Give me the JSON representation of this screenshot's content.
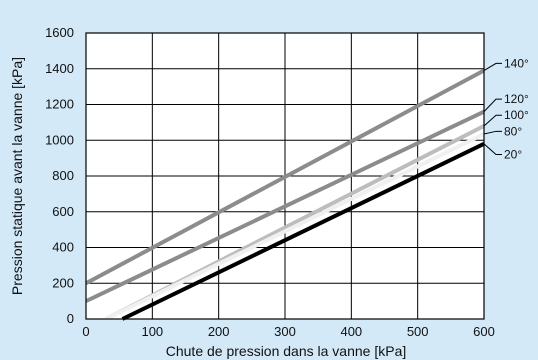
{
  "chart_data": {
    "type": "line",
    "title": "",
    "xlabel": "Chute de pression dans la vanne [kPa]",
    "ylabel": "Pression statique avant la vanne [kPa]",
    "xlim": [
      0,
      600
    ],
    "ylim": [
      0,
      1600
    ],
    "x_ticks": [
      0,
      100,
      200,
      300,
      400,
      500,
      600
    ],
    "y_ticks": [
      0,
      200,
      400,
      600,
      800,
      1000,
      1200,
      1400,
      1600
    ],
    "grid": true,
    "series": [
      {
        "name": "140°",
        "color": "#8c8c8c",
        "x": [
          0,
          600
        ],
        "y": [
          200,
          1390
        ]
      },
      {
        "name": "120°",
        "color": "#8c8c8c",
        "x": [
          0,
          600
        ],
        "y": [
          100,
          1160
        ]
      },
      {
        "name": "100°",
        "color": "#bdbdbd",
        "x": [
          30,
          600
        ],
        "y": [
          0,
          1080
        ]
      },
      {
        "name": "80°",
        "color": "#f0f0f0",
        "x": [
          30,
          600
        ],
        "y": [
          0,
          1035
        ]
      },
      {
        "name": "20°",
        "color": "#000000",
        "x": [
          55,
          600
        ],
        "y": [
          0,
          980
        ]
      }
    ],
    "label_y": [
      1430,
      1230,
      1140,
      1050,
      920
    ]
  }
}
